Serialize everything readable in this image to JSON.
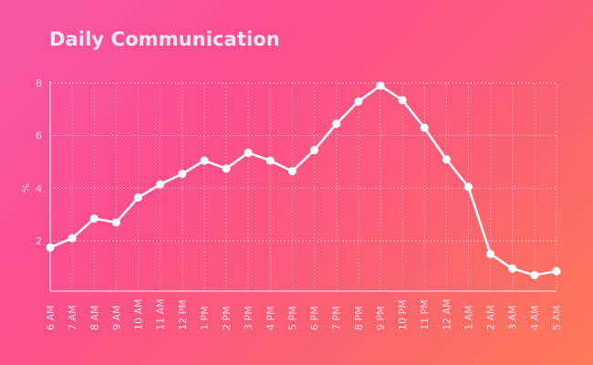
{
  "title": "Daily Communication",
  "colors": {
    "background_start": "#f857a6",
    "background_end": "#fd7a56",
    "line": "#ffffff",
    "grid": "#fbb6d0",
    "text": "#fde7f1"
  },
  "chart_data": {
    "type": "line",
    "title": "Daily Communication",
    "xlabel": "",
    "ylabel": "%",
    "ylim": [
      0,
      8
    ],
    "yticks": [
      2,
      4,
      6,
      8
    ],
    "grid": true,
    "legend": null,
    "categories": [
      "6 AM",
      "7 AM",
      "8 AM",
      "9 AM",
      "10 AM",
      "11 AM",
      "12 PM",
      "1 PM",
      "2 PM",
      "3 PM",
      "4 PM",
      "5 PM",
      "6 PM",
      "7 PM",
      "8 PM",
      "9 PM",
      "10 PM",
      "11 PM",
      "12 AM",
      "1 AM",
      "2 AM",
      "3 AM",
      "4 AM",
      "5 AM"
    ],
    "series": [
      {
        "name": "Daily Communication",
        "values": [
          1.75,
          2.1,
          2.85,
          2.7,
          3.65,
          4.15,
          4.55,
          5.05,
          4.75,
          5.35,
          5.05,
          4.65,
          5.45,
          6.45,
          7.3,
          7.9,
          7.35,
          6.3,
          5.1,
          4.05,
          1.5,
          0.95,
          0.7,
          0.85
        ]
      }
    ]
  }
}
